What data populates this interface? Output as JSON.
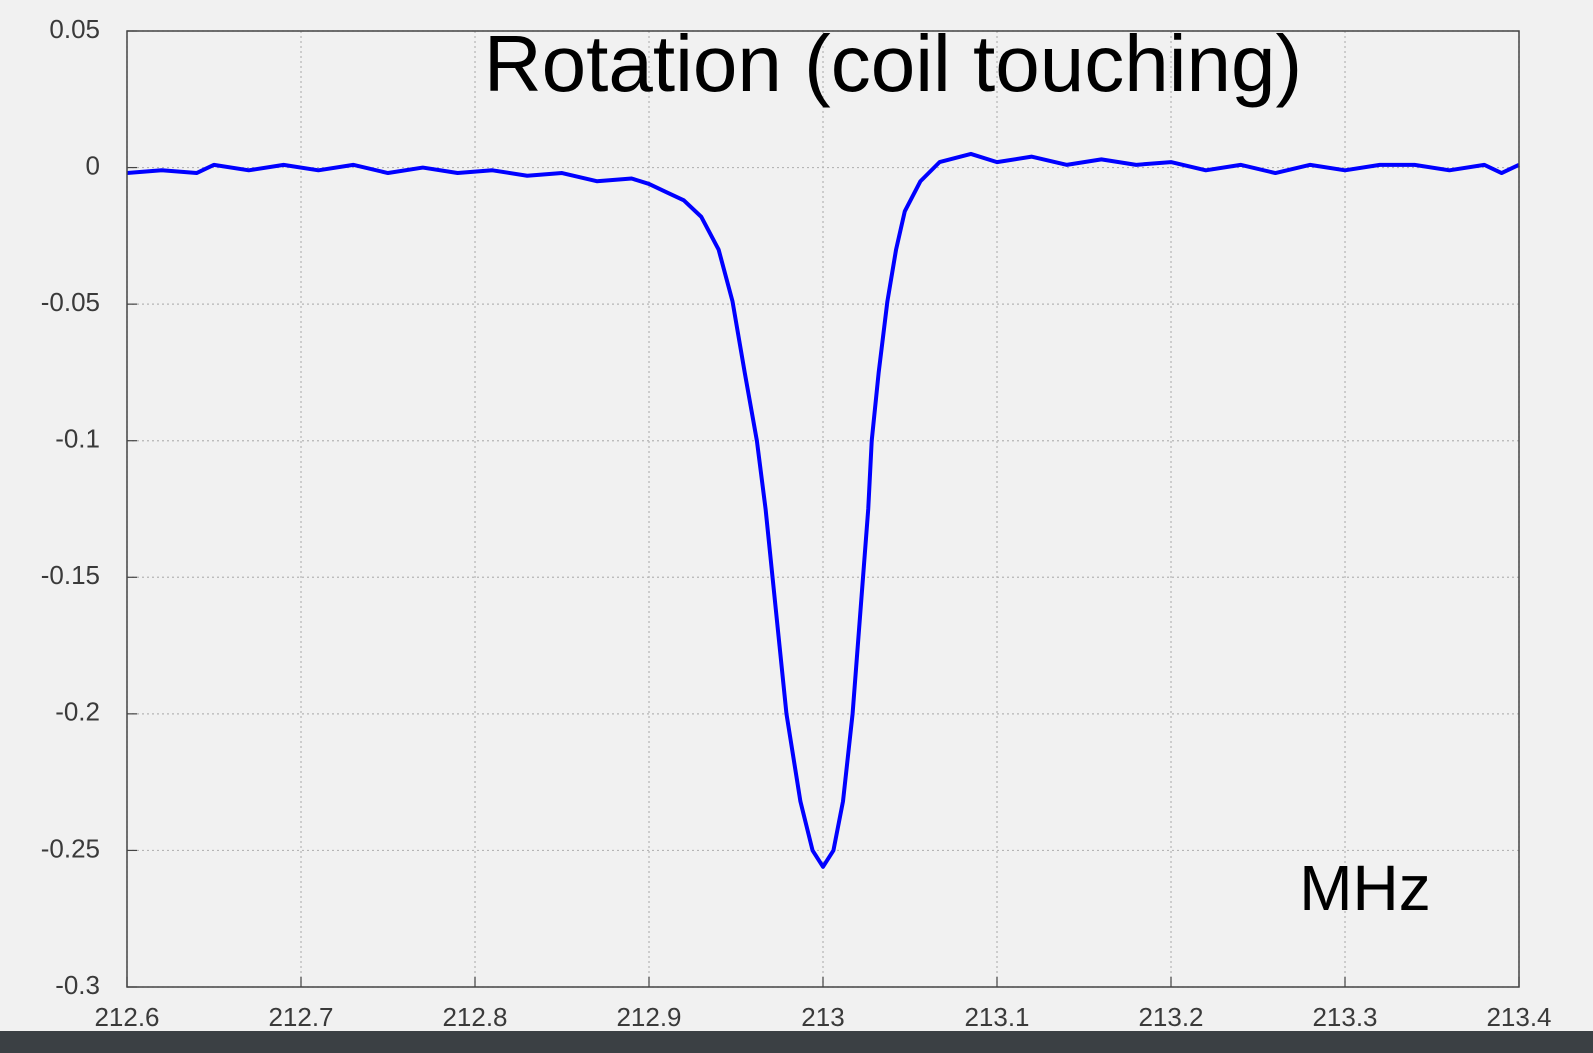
{
  "chart_data": {
    "type": "line",
    "title": "Rotation (coil touching)",
    "annotation": "MHz",
    "x": [
      212.6,
      212.62,
      212.64,
      212.65,
      212.67,
      212.69,
      212.71,
      212.73,
      212.75,
      212.77,
      212.79,
      212.81,
      212.83,
      212.85,
      212.87,
      212.89,
      212.9,
      212.91,
      212.92,
      212.93,
      212.94,
      212.948,
      212.955,
      212.962,
      212.967,
      212.971,
      212.975,
      212.979,
      212.987,
      212.994,
      213.0,
      213.006,
      213.0115,
      213.017,
      213.02,
      213.023,
      213.026,
      213.028,
      213.032,
      213.037,
      213.042,
      213.047,
      213.056,
      213.067,
      213.085,
      213.1,
      213.12,
      213.14,
      213.16,
      213.18,
      213.2,
      213.22,
      213.24,
      213.26,
      213.28,
      213.3,
      213.32,
      213.34,
      213.36,
      213.38,
      213.39,
      213.4
    ],
    "series": [
      {
        "name": "rotation",
        "color": "#0000ff",
        "values": [
          -0.002,
          -0.001,
          -0.002,
          0.001,
          -0.001,
          0.001,
          -0.001,
          0.001,
          -0.002,
          0,
          -0.002,
          -0.001,
          -0.003,
          -0.002,
          -0.005,
          -0.004,
          -0.006,
          -0.009,
          -0.012,
          -0.018,
          -0.03,
          -0.049,
          -0.075,
          -0.1,
          -0.125,
          -0.15,
          -0.175,
          -0.2,
          -0.232,
          -0.25,
          -0.256,
          -0.25,
          -0.232,
          -0.2,
          -0.175,
          -0.15,
          -0.125,
          -0.1,
          -0.075,
          -0.049,
          -0.03,
          -0.016,
          -0.005,
          0.002,
          0.005,
          0.002,
          0.004,
          0.001,
          0.003,
          0.001,
          0.002,
          -0.001,
          0.001,
          -0.002,
          0.001,
          -0.001,
          0.001,
          0.001,
          -0.001,
          0.001,
          -0.002,
          0.001
        ]
      }
    ],
    "xlim": [
      212.6,
      213.4
    ],
    "xticks": [
      212.6,
      212.7,
      212.8,
      212.9,
      213,
      213.1,
      213.2,
      213.3,
      213.4
    ],
    "ylim": [
      -0.3,
      0.05
    ],
    "yticks": [
      0.05,
      0,
      -0.05,
      -0.1,
      -0.15,
      -0.2,
      -0.25,
      -0.3
    ],
    "grid": true
  }
}
